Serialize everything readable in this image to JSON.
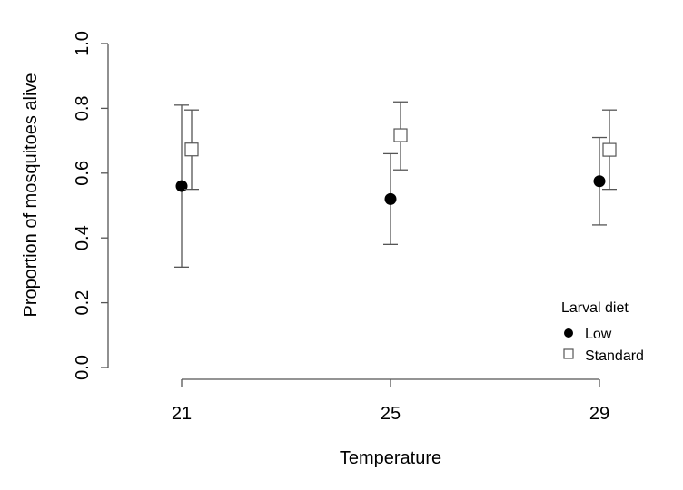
{
  "chart_data": {
    "type": "scatter",
    "xlabel": "Temperature",
    "ylabel": "Proportion of mosquitoes alive",
    "ylim": [
      0,
      1
    ],
    "yticks": [
      "0.0",
      "0.2",
      "0.4",
      "0.6",
      "0.8",
      "1.0"
    ],
    "categories": [
      "21",
      "25",
      "29"
    ],
    "legend_title": "Larval diet",
    "legend_position": "bottom-right",
    "series": [
      {
        "name": "Low",
        "marker": "filled-circle",
        "color": "#000000",
        "values": [
          0.56,
          0.52,
          0.575
        ],
        "lower": [
          0.31,
          0.38,
          0.44
        ],
        "upper": [
          0.81,
          0.66,
          0.71
        ]
      },
      {
        "name": "Standard",
        "marker": "open-square",
        "color": "#555555",
        "values": [
          0.673,
          0.717,
          0.672
        ],
        "lower": [
          0.55,
          0.61,
          0.55
        ],
        "upper": [
          0.795,
          0.82,
          0.795
        ]
      }
    ]
  }
}
